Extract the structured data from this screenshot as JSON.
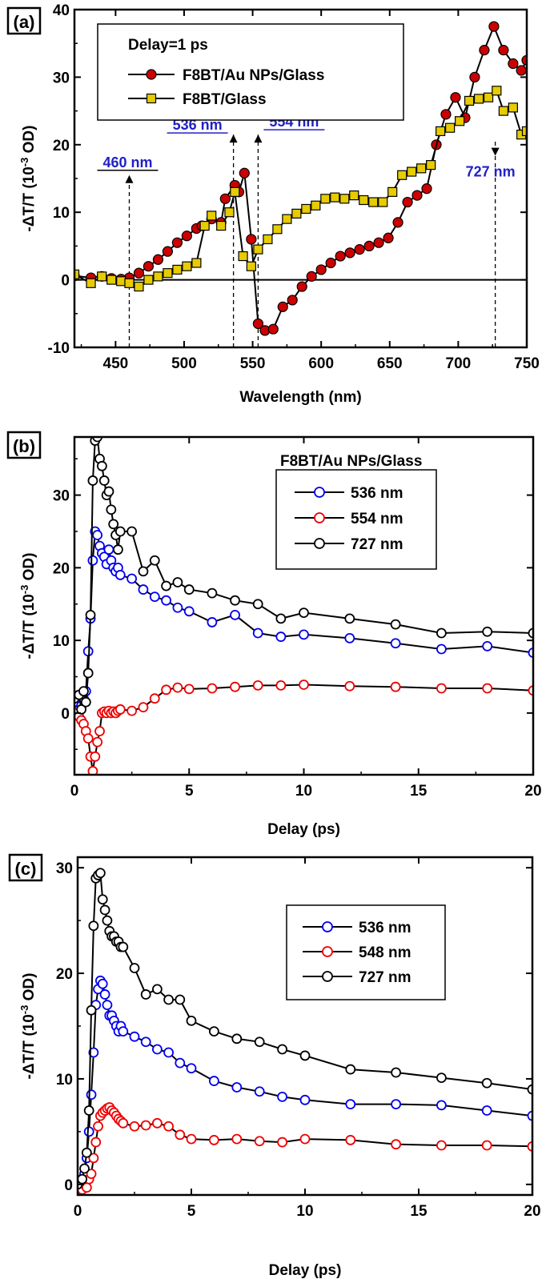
{
  "chart_data": [
    {
      "type": "line",
      "panel_label": "(a)",
      "xlabel": "Wavelength (nm)",
      "ylabel": "-ΔT/T (10-3 OD)",
      "xlim": [
        420,
        750
      ],
      "ylim": [
        -10,
        40
      ],
      "xticks": [
        450,
        500,
        550,
        600,
        650,
        700,
        750
      ],
      "yticks": [
        -10,
        0,
        10,
        20,
        30,
        40
      ],
      "grid": false,
      "legend_title": "Delay=1 ps",
      "legend_position": "top-left",
      "zero_line": true,
      "series": [
        {
          "name": "F8BT/Au NPs/Glass",
          "color": "#cc0000",
          "marker": "circle",
          "x": [
            420,
            432,
            440,
            447,
            454,
            460,
            467,
            474,
            481,
            488,
            495,
            502,
            509,
            513,
            520,
            527,
            530,
            537,
            540,
            544,
            549,
            554,
            559,
            565,
            572,
            579,
            586,
            593,
            600,
            607,
            614,
            621,
            628,
            635,
            642,
            649,
            656,
            663,
            670,
            677,
            684,
            691,
            698,
            705,
            712,
            719,
            726,
            733,
            740,
            746,
            750
          ],
          "y": [
            0.6,
            0.3,
            0.5,
            0.2,
            0.1,
            0.3,
            1.0,
            2.0,
            3.0,
            4.2,
            5.5,
            6.5,
            7.6,
            8.0,
            9.0,
            8.5,
            12.0,
            14.0,
            13.0,
            15.8,
            6.0,
            -6.5,
            -7.5,
            -7.3,
            -4.0,
            -3.0,
            -1.0,
            0.5,
            1.5,
            2.5,
            3.5,
            4.0,
            4.5,
            5.0,
            5.5,
            6.2,
            8.5,
            11.5,
            12.5,
            13.5,
            20.0,
            24.5,
            27.0,
            24.0,
            30.0,
            34.0,
            37.5,
            34.0,
            32.0,
            31.0,
            32.5
          ]
        },
        {
          "name": "F8BT/Glass",
          "color": "#e6cc00",
          "marker": "square",
          "x": [
            420,
            432,
            440,
            447,
            454,
            460,
            467,
            474,
            481,
            488,
            495,
            502,
            509,
            515,
            520,
            527,
            533,
            537,
            543,
            549,
            554,
            561,
            568,
            575,
            582,
            589,
            596,
            603,
            610,
            617,
            624,
            631,
            638,
            645,
            652,
            659,
            666,
            673,
            680,
            687,
            694,
            701,
            708,
            715,
            722,
            728,
            733,
            740,
            746,
            750
          ],
          "y": [
            0.8,
            -0.5,
            0.5,
            0.0,
            -0.2,
            -0.5,
            -1.0,
            0.0,
            0.5,
            1.0,
            1.5,
            2.0,
            2.5,
            8.0,
            9.5,
            8.0,
            10.0,
            13.0,
            3.5,
            2.0,
            4.5,
            6.0,
            7.5,
            9.0,
            9.8,
            10.5,
            11.0,
            12.0,
            12.2,
            12.0,
            12.5,
            11.8,
            11.5,
            11.5,
            13.0,
            15.5,
            16.0,
            16.5,
            17.0,
            22.0,
            22.5,
            23.5,
            26.5,
            26.8,
            27.0,
            28.0,
            25.0,
            25.5,
            21.5,
            22.0
          ]
        }
      ],
      "annotations": [
        {
          "text": "460 nm",
          "x": 460,
          "y": 15.5,
          "arrow_dir": "up"
        },
        {
          "text": "536 nm",
          "x": 536,
          "y": 21.5,
          "arrow_dir": "up"
        },
        {
          "text": "554 nm",
          "x": 554,
          "y": 21.5,
          "arrow_dir": "up"
        },
        {
          "text": "727 nm",
          "x": 727,
          "y": 20.5,
          "arrow_dir": "down"
        }
      ]
    },
    {
      "type": "line",
      "panel_label": "(b)",
      "xlabel": "Delay (ps)",
      "ylabel": "-ΔT/T (10-3 OD)",
      "xlim": [
        0,
        20
      ],
      "ylim": [
        -8.5,
        38
      ],
      "xticks": [
        0,
        5,
        10,
        15,
        20
      ],
      "yticks": [
        0,
        10,
        20,
        30
      ],
      "grid": false,
      "legend_title": "F8BT/Au NPs/Glass",
      "legend_position": "top-right",
      "series": [
        {
          "name": "536 nm",
          "color": "#0000ee",
          "marker": "circle-open",
          "x": [
            0.0,
            0.2,
            0.3,
            0.4,
            0.5,
            0.6,
            0.7,
            0.8,
            0.9,
            1.0,
            1.1,
            1.2,
            1.3,
            1.4,
            1.5,
            1.6,
            1.7,
            1.8,
            1.9,
            2.0,
            2.5,
            3.0,
            3.5,
            4.0,
            4.5,
            5.0,
            6.0,
            7.0,
            8.0,
            9.0,
            10.0,
            12.0,
            14.0,
            16.0,
            18.0,
            20.0
          ],
          "y": [
            0.0,
            0.5,
            1.0,
            2.0,
            3.0,
            8.5,
            13.0,
            21.0,
            25.0,
            24.5,
            23.0,
            22.0,
            21.5,
            20.5,
            22.5,
            21.0,
            20.0,
            19.5,
            20.0,
            19.0,
            18.5,
            17.0,
            16.0,
            15.5,
            14.5,
            14.0,
            12.5,
            13.5,
            11.0,
            10.5,
            10.8,
            10.3,
            9.6,
            8.8,
            9.2,
            8.3
          ]
        },
        {
          "name": "554 nm",
          "color": "#ee0000",
          "marker": "circle-open",
          "x": [
            0.0,
            0.2,
            0.3,
            0.4,
            0.5,
            0.6,
            0.7,
            0.8,
            0.9,
            1.0,
            1.1,
            1.2,
            1.3,
            1.4,
            1.5,
            1.6,
            1.7,
            1.8,
            1.9,
            2.0,
            2.5,
            3.0,
            3.5,
            4.0,
            4.5,
            5.0,
            6.0,
            7.0,
            8.0,
            9.0,
            10.0,
            12.0,
            14.0,
            16.0,
            18.0,
            20.0
          ],
          "y": [
            0.0,
            -0.5,
            -1.0,
            -1.5,
            -2.5,
            -3.5,
            -6.0,
            -8.0,
            -6.0,
            -4.0,
            -2.5,
            0.0,
            0.2,
            0.0,
            0.3,
            0.0,
            0.2,
            0.0,
            0.3,
            0.5,
            0.3,
            0.8,
            2.0,
            3.2,
            3.5,
            3.3,
            3.4,
            3.6,
            3.8,
            3.8,
            3.9,
            3.7,
            3.6,
            3.4,
            3.4,
            3.1
          ]
        },
        {
          "name": "727 nm",
          "color": "#000000",
          "marker": "circle-open",
          "x": [
            0.0,
            0.2,
            0.3,
            0.4,
            0.5,
            0.6,
            0.7,
            0.8,
            0.9,
            1.0,
            1.1,
            1.2,
            1.3,
            1.4,
            1.5,
            1.6,
            1.7,
            1.8,
            1.9,
            2.0,
            2.5,
            3.0,
            3.5,
            4.0,
            4.5,
            5.0,
            6.0,
            7.0,
            8.0,
            9.0,
            10.0,
            12.0,
            14.0,
            16.0,
            18.0,
            20.0
          ],
          "y": [
            2.0,
            2.5,
            0.5,
            3.0,
            1.5,
            5.5,
            13.5,
            32.0,
            37.5,
            38.0,
            35.0,
            34.0,
            32.0,
            30.0,
            30.5,
            28.0,
            26.0,
            24.5,
            22.5,
            25.0,
            25.0,
            19.5,
            21.0,
            17.5,
            18.0,
            17.0,
            16.5,
            15.5,
            15.0,
            13.0,
            13.8,
            13.0,
            12.2,
            11.0,
            11.2,
            11.0
          ]
        }
      ]
    },
    {
      "type": "line",
      "panel_label": "(c)",
      "xlabel": "Delay (ps)",
      "ylabel": "-ΔT/T (10-3 OD)",
      "xlim": [
        0,
        20
      ],
      "ylim": [
        -1,
        31
      ],
      "xticks": [
        0,
        5,
        10,
        15,
        20
      ],
      "yticks": [
        0,
        10,
        20,
        30
      ],
      "grid": false,
      "legend_title": "",
      "legend_position": "top-right",
      "series": [
        {
          "name": "536 nm",
          "color": "#0000ee",
          "marker": "circle-open",
          "x": [
            0.0,
            0.2,
            0.3,
            0.4,
            0.5,
            0.6,
            0.7,
            0.8,
            0.9,
            1.0,
            1.1,
            1.2,
            1.3,
            1.4,
            1.5,
            1.6,
            1.7,
            1.8,
            1.9,
            2.0,
            2.5,
            3.0,
            3.5,
            4.0,
            4.5,
            5.0,
            6.0,
            7.0,
            8.0,
            9.0,
            10.0,
            12.0,
            14.0,
            16.0,
            18.0,
            20.0
          ],
          "y": [
            0.0,
            0.5,
            1.0,
            2.5,
            5.0,
            8.5,
            12.5,
            17.0,
            18.5,
            19.3,
            19.0,
            18.0,
            17.0,
            16.0,
            16.0,
            15.5,
            15.0,
            14.5,
            15.0,
            14.5,
            14.0,
            13.5,
            12.8,
            12.5,
            11.5,
            11.0,
            9.8,
            9.2,
            8.8,
            8.3,
            8.0,
            7.6,
            7.6,
            7.5,
            7.0,
            6.5
          ]
        },
        {
          "name": "548 nm",
          "color": "#ee0000",
          "marker": "circle-open",
          "x": [
            0.0,
            0.2,
            0.3,
            0.4,
            0.5,
            0.6,
            0.7,
            0.8,
            0.9,
            1.0,
            1.1,
            1.2,
            1.3,
            1.4,
            1.5,
            1.6,
            1.7,
            1.8,
            1.9,
            2.0,
            2.5,
            3.0,
            3.5,
            4.0,
            4.5,
            5.0,
            6.0,
            7.0,
            8.0,
            9.0,
            10.0,
            12.0,
            14.0,
            16.0,
            18.0,
            20.0
          ],
          "y": [
            -0.5,
            -0.5,
            0.0,
            -0.3,
            0.5,
            1.0,
            2.5,
            4.0,
            5.5,
            6.5,
            6.8,
            7.0,
            7.2,
            7.3,
            7.0,
            6.8,
            6.5,
            6.2,
            6.0,
            5.8,
            5.5,
            5.6,
            5.8,
            5.5,
            4.7,
            4.3,
            4.2,
            4.3,
            4.1,
            4.0,
            4.3,
            4.2,
            3.8,
            3.7,
            3.7,
            3.6
          ]
        },
        {
          "name": "727 nm",
          "color": "#000000",
          "marker": "circle-open",
          "x": [
            0.0,
            0.2,
            0.3,
            0.4,
            0.5,
            0.6,
            0.7,
            0.8,
            0.9,
            1.0,
            1.1,
            1.2,
            1.3,
            1.4,
            1.5,
            1.6,
            1.7,
            1.8,
            1.9,
            2.0,
            2.5,
            3.0,
            3.5,
            4.0,
            4.5,
            5.0,
            6.0,
            7.0,
            8.0,
            9.0,
            10.0,
            12.0,
            14.0,
            16.0,
            18.0,
            20.0
          ],
          "y": [
            0.0,
            0.5,
            1.5,
            3.0,
            7.0,
            16.5,
            24.5,
            29.0,
            29.3,
            29.5,
            27.0,
            26.0,
            25.0,
            24.0,
            23.5,
            23.5,
            23.0,
            23.0,
            22.5,
            22.5,
            20.5,
            18.0,
            18.5,
            17.5,
            17.5,
            15.5,
            14.5,
            13.8,
            13.5,
            12.8,
            12.2,
            10.9,
            10.6,
            10.1,
            9.6,
            9.0
          ]
        }
      ]
    }
  ]
}
